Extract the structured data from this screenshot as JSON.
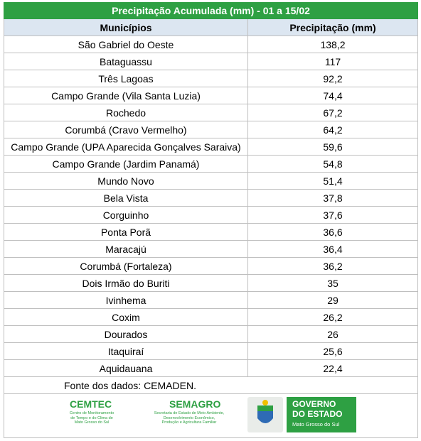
{
  "table": {
    "title": "Precipitação Acumulada (mm) - 01 a 15/02",
    "header": [
      "Municípios",
      "Precipitação (mm)"
    ],
    "rows": [
      [
        "São Gabriel do Oeste",
        "138,2"
      ],
      [
        "Bataguassu",
        "117"
      ],
      [
        "Três Lagoas",
        "92,2"
      ],
      [
        "Campo Grande (Vila Santa Luzia)",
        "74,4"
      ],
      [
        "Rochedo",
        "67,2"
      ],
      [
        "Corumbá (Cravo Vermelho)",
        "64,2"
      ],
      [
        "Campo Grande (UPA Aparecida Gonçalves Saraiva)",
        "59,6"
      ],
      [
        "Campo Grande (Jardim Panamá)",
        "54,8"
      ],
      [
        "Mundo Novo",
        "51,4"
      ],
      [
        "Bela Vista",
        "37,8"
      ],
      [
        "Corguinho",
        "37,6"
      ],
      [
        "Ponta Porã",
        "36,6"
      ],
      [
        "Maracajú",
        "36,4"
      ],
      [
        "Corumbá (Fortaleza)",
        "36,2"
      ],
      [
        "Dois Irmão do Buriti",
        "35"
      ],
      [
        "Ivinhema",
        "29"
      ],
      [
        "Coxim",
        "26,2"
      ],
      [
        "Dourados",
        "26"
      ],
      [
        "Itaquiraí",
        "25,6"
      ],
      [
        "Aquidauana",
        "22,4"
      ]
    ],
    "source": "Fonte dos dados: CEMADEN."
  },
  "logos": {
    "cemtec": {
      "name": "CEMTEC",
      "lines": [
        "Centro de Monitoramento",
        "de Tempo e do Clima de",
        "Mato Grosso do Sul"
      ]
    },
    "semagro": {
      "name": "SEMAGRO",
      "lines": [
        "Secretaria de Estado de Meio Ambiente,",
        "Desenvolvimento Econômico,",
        "Produção e Agricultura Familiar"
      ]
    },
    "governo": {
      "lines": [
        "GOVERNO",
        "DO ESTADO"
      ],
      "sub": "Mato Grosso do Sul"
    }
  }
}
